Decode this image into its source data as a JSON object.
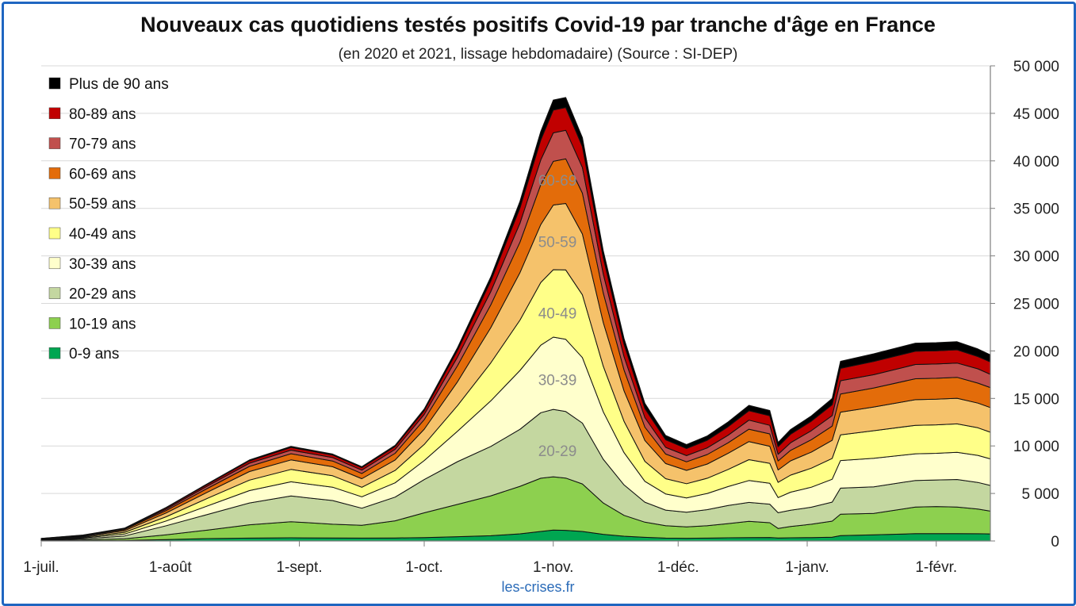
{
  "chart_data": {
    "type": "area",
    "stacked": true,
    "title": "Nouveaux cas quotidiens testés positifs Covid-19 par tranche d'âge en France",
    "subtitle": "(en 2020 et 2021, lissage hebdomadaire) (Source : SI-DEP)",
    "source": "les-crises.fr",
    "grid": true,
    "legend_position": "left",
    "ylim": [
      0,
      50000
    ],
    "y_ticks": [
      0,
      5000,
      10000,
      15000,
      20000,
      25000,
      30000,
      35000,
      40000,
      45000,
      50000
    ],
    "y_tick_labels": [
      "0",
      "5 000",
      "10 000",
      "15 000",
      "20 000",
      "25 000",
      "30 000",
      "35 000",
      "40 000",
      "45 000",
      "50 000"
    ],
    "x_ticks": [
      {
        "day": 0,
        "label": "1-juil."
      },
      {
        "day": 31,
        "label": "1-août"
      },
      {
        "day": 62,
        "label": "1-sept."
      },
      {
        "day": 92,
        "label": "1-oct."
      },
      {
        "day": 123,
        "label": "1-nov."
      },
      {
        "day": 153,
        "label": "1-déc."
      },
      {
        "day": 184,
        "label": "1-janv."
      },
      {
        "day": 215,
        "label": "1-févr."
      }
    ],
    "x_range": [
      0,
      228
    ],
    "x": [
      0,
      10,
      20,
      30,
      40,
      50,
      60,
      70,
      77,
      85,
      92,
      100,
      108,
      115,
      120,
      123,
      126,
      130,
      135,
      140,
      145,
      150,
      155,
      160,
      165,
      170,
      175,
      177,
      180,
      185,
      190,
      192,
      200,
      210,
      215,
      220,
      225,
      228
    ],
    "series": [
      {
        "name": "0-9 ans",
        "color": "#00a651",
        "values": [
          0,
          20,
          50,
          150,
          250,
          300,
          330,
          310,
          300,
          320,
          360,
          450,
          550,
          750,
          1000,
          1150,
          1120,
          1000,
          700,
          500,
          380,
          300,
          280,
          300,
          330,
          360,
          370,
          320,
          330,
          360,
          390,
          560,
          650,
          770,
          770,
          770,
          760,
          740
        ]
      },
      {
        "name": "10-19 ans",
        "color": "#8dd04f",
        "values": [
          30,
          80,
          180,
          500,
          900,
          1400,
          1700,
          1450,
          1350,
          1800,
          2600,
          3400,
          4200,
          5000,
          5600,
          5600,
          5500,
          5000,
          3300,
          2200,
          1600,
          1300,
          1200,
          1300,
          1500,
          1700,
          1550,
          1000,
          1200,
          1400,
          1700,
          2250,
          2250,
          2800,
          2850,
          2800,
          2600,
          2400
        ]
      },
      {
        "name": "20-29 ans",
        "color": "#c4d7a0",
        "values": [
          50,
          120,
          300,
          950,
          1650,
          2300,
          2700,
          2500,
          1800,
          2500,
          3500,
          4500,
          5200,
          6000,
          6900,
          7100,
          7000,
          6400,
          4600,
          3200,
          2100,
          1650,
          1550,
          1700,
          1900,
          2000,
          1950,
          1650,
          1700,
          1800,
          2000,
          2750,
          2800,
          2800,
          2800,
          2900,
          2800,
          2700
        ]
      },
      {
        "name": "30-39 ans",
        "color": "#ffffcc",
        "values": [
          40,
          100,
          200,
          500,
          900,
          1300,
          1500,
          1400,
          1200,
          1500,
          2000,
          3200,
          4800,
          6200,
          7100,
          7600,
          7600,
          6900,
          5000,
          3400,
          2200,
          1700,
          1500,
          1700,
          2000,
          2300,
          2200,
          1600,
          1900,
          2100,
          2400,
          2900,
          3000,
          2800,
          2800,
          2850,
          2850,
          2800
        ]
      },
      {
        "name": "40-49 ans",
        "color": "#ffff88",
        "values": [
          40,
          80,
          180,
          450,
          800,
          1100,
          1300,
          1200,
          1000,
          1300,
          1700,
          2700,
          4000,
          5300,
          6600,
          7100,
          7300,
          6600,
          4800,
          3300,
          2100,
          1600,
          1500,
          1600,
          1800,
          2200,
          2100,
          1600,
          1800,
          2000,
          2200,
          2700,
          2900,
          3000,
          3000,
          3000,
          2900,
          2800
        ]
      },
      {
        "name": "50-59 ans",
        "color": "#f5c26b",
        "values": [
          40,
          80,
          170,
          400,
          650,
          900,
          1000,
          950,
          900,
          1100,
          1600,
          2500,
          3700,
          5000,
          6100,
          6800,
          7000,
          6400,
          4600,
          3200,
          2200,
          1600,
          1400,
          1500,
          1700,
          1900,
          1800,
          1300,
          1500,
          1700,
          1900,
          2400,
          2500,
          2700,
          2700,
          2700,
          2600,
          2600
        ]
      },
      {
        "name": "60-69 ans",
        "color": "#e36c0a",
        "values": [
          30,
          60,
          120,
          250,
          400,
          550,
          650,
          600,
          550,
          700,
          1000,
          1700,
          2400,
          3200,
          4200,
          4600,
          4700,
          4300,
          3100,
          2200,
          1400,
          1000,
          900,
          1000,
          1100,
          1300,
          1300,
          950,
          1100,
          1300,
          1500,
          1900,
          2000,
          2200,
          2200,
          2200,
          2100,
          2100
        ]
      },
      {
        "name": "70-79 ans",
        "color": "#c0504d",
        "values": [
          20,
          40,
          70,
          150,
          240,
          330,
          380,
          360,
          350,
          420,
          550,
          900,
          1400,
          2000,
          2600,
          3000,
          3000,
          2700,
          2000,
          1400,
          1000,
          700,
          650,
          700,
          800,
          950,
          900,
          700,
          800,
          950,
          1100,
          1400,
          1400,
          1500,
          1500,
          1500,
          1500,
          1400
        ]
      },
      {
        "name": "80-89 ans",
        "color": "#c00000",
        "values": [
          10,
          30,
          50,
          120,
          180,
          240,
          280,
          270,
          260,
          300,
          400,
          700,
          1100,
          1600,
          2100,
          2400,
          2400,
          2200,
          1700,
          1300,
          950,
          800,
          750,
          800,
          900,
          1000,
          1000,
          800,
          900,
          1000,
          1150,
          1300,
          1400,
          1400,
          1400,
          1400,
          1300,
          1300
        ]
      },
      {
        "name": "Plus de 90 ans",
        "color": "#000000",
        "values": [
          10,
          20,
          30,
          60,
          80,
          100,
          120,
          110,
          110,
          130,
          180,
          300,
          450,
          700,
          900,
          1050,
          1050,
          950,
          750,
          600,
          550,
          450,
          420,
          450,
          500,
          560,
          560,
          450,
          500,
          550,
          650,
          750,
          800,
          850,
          850,
          850,
          800,
          750
        ]
      }
    ],
    "annotations": [
      {
        "text": "60-69",
        "day": 124,
        "y": 38000
      },
      {
        "text": "50-59",
        "day": 124,
        "y": 31500
      },
      {
        "text": "40-49",
        "day": 124,
        "y": 24000
      },
      {
        "text": "30-39",
        "day": 124,
        "y": 17000
      },
      {
        "text": "20-29",
        "day": 124,
        "y": 9500
      }
    ]
  }
}
